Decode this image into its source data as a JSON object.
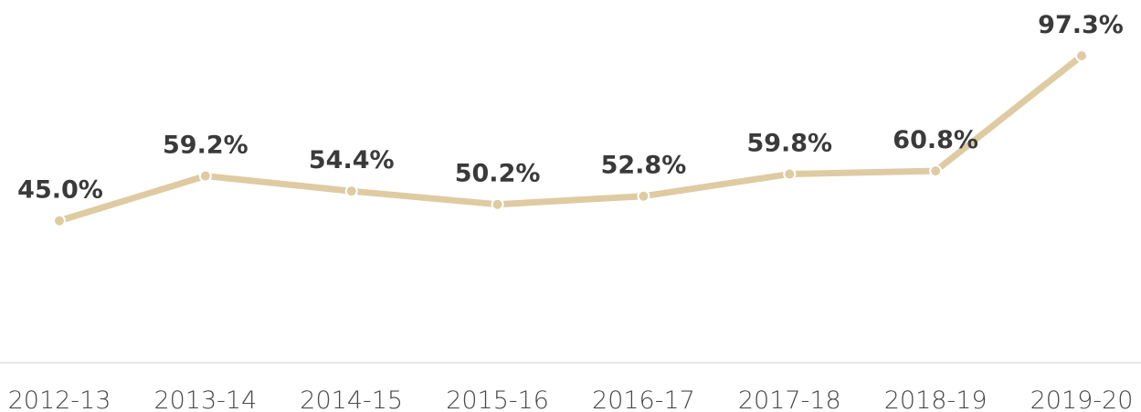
{
  "chart_data": {
    "type": "line",
    "categories": [
      "2012-13",
      "2013-14",
      "2014-15",
      "2015-16",
      "2016-17",
      "2017-18",
      "2018-19",
      "2019-20"
    ],
    "values": [
      45.0,
      59.2,
      54.4,
      50.2,
      52.8,
      59.8,
      60.8,
      97.3
    ],
    "value_labels": [
      "45.0%",
      "59.2%",
      "54.4%",
      "50.2%",
      "52.8%",
      "59.8%",
      "60.8%",
      "97.3%"
    ],
    "color": "#dfcba2",
    "ylim": [
      0,
      115
    ]
  }
}
